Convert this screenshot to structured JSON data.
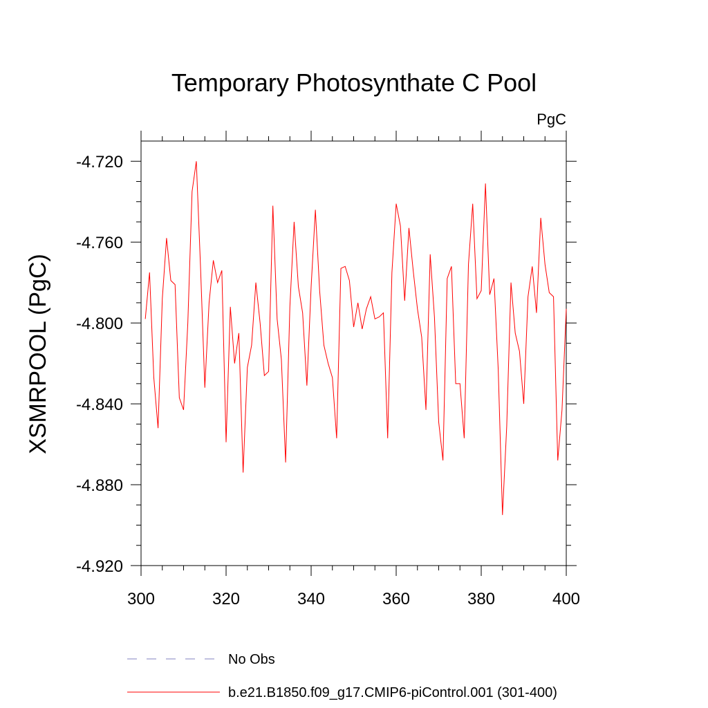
{
  "colors": {
    "series": "#ff0000",
    "no_obs": "#8080c0",
    "axis": "#000000"
  },
  "chart_data": {
    "type": "line",
    "title": "Temporary Photosynthate C Pool",
    "units": "PgC",
    "xlabel": "",
    "ylabel": "XSMRPOOL  (PgC)",
    "xlim": [
      300,
      400
    ],
    "ylim": [
      -4.92,
      -4.71
    ],
    "x_ticks": [
      300,
      320,
      340,
      360,
      380,
      400
    ],
    "x_tick_labels": [
      "300",
      "320",
      "340",
      "360",
      "380",
      "400"
    ],
    "y_ticks": [
      -4.72,
      -4.76,
      -4.8,
      -4.84,
      -4.88,
      -4.92
    ],
    "y_tick_labels": [
      "-4.720",
      "-4.760",
      "-4.800",
      "-4.840",
      "-4.880",
      "-4.920"
    ],
    "legend": [
      {
        "label": "No Obs",
        "style": "dashed"
      },
      {
        "label": "b.e21.B1850.f09_g17.CMIP6-piControl.001 (301-400)",
        "style": "solid"
      }
    ],
    "series": [
      {
        "name": "b.e21.B1850.f09_g17.CMIP6-piControl.001 (301-400)",
        "x": [
          301,
          302,
          303,
          304,
          305,
          306,
          307,
          308,
          309,
          310,
          311,
          312,
          313,
          314,
          315,
          316,
          317,
          318,
          319,
          320,
          321,
          322,
          323,
          324,
          325,
          326,
          327,
          328,
          329,
          330,
          331,
          332,
          333,
          334,
          335,
          336,
          337,
          338,
          339,
          340,
          341,
          342,
          343,
          344,
          345,
          346,
          347,
          348,
          349,
          350,
          351,
          352,
          353,
          354,
          355,
          356,
          357,
          358,
          359,
          360,
          361,
          362,
          363,
          364,
          365,
          366,
          367,
          368,
          369,
          370,
          371,
          372,
          373,
          374,
          375,
          376,
          377,
          378,
          379,
          380,
          381,
          382,
          383,
          384,
          385,
          386,
          387,
          388,
          389,
          390,
          391,
          392,
          393,
          394,
          395,
          396,
          397,
          398,
          399,
          400
        ],
        "values": [
          -4.798,
          -4.775,
          -4.827,
          -4.852,
          -4.788,
          -4.758,
          -4.779,
          -4.781,
          -4.837,
          -4.843,
          -4.8,
          -4.735,
          -4.72,
          -4.773,
          -4.832,
          -4.79,
          -4.769,
          -4.78,
          -4.774,
          -4.859,
          -4.792,
          -4.82,
          -4.805,
          -4.874,
          -4.822,
          -4.811,
          -4.78,
          -4.8,
          -4.826,
          -4.824,
          -4.742,
          -4.798,
          -4.818,
          -4.869,
          -4.792,
          -4.75,
          -4.782,
          -4.795,
          -4.831,
          -4.782,
          -4.744,
          -4.784,
          -4.811,
          -4.82,
          -4.827,
          -4.857,
          -4.773,
          -4.772,
          -4.779,
          -4.802,
          -4.79,
          -4.803,
          -4.793,
          -4.787,
          -4.798,
          -4.797,
          -4.795,
          -4.857,
          -4.775,
          -4.741,
          -4.752,
          -4.789,
          -4.753,
          -4.774,
          -4.793,
          -4.807,
          -4.843,
          -4.766,
          -4.797,
          -4.849,
          -4.868,
          -4.778,
          -4.772,
          -4.83,
          -4.83,
          -4.857,
          -4.771,
          -4.741,
          -4.788,
          -4.784,
          -4.731,
          -4.786,
          -4.778,
          -4.823,
          -4.895,
          -4.851,
          -4.78,
          -4.805,
          -4.814,
          -4.84,
          -4.787,
          -4.772,
          -4.795,
          -4.748,
          -4.771,
          -4.785,
          -4.787,
          -4.868,
          -4.843,
          -4.793
        ]
      }
    ]
  }
}
